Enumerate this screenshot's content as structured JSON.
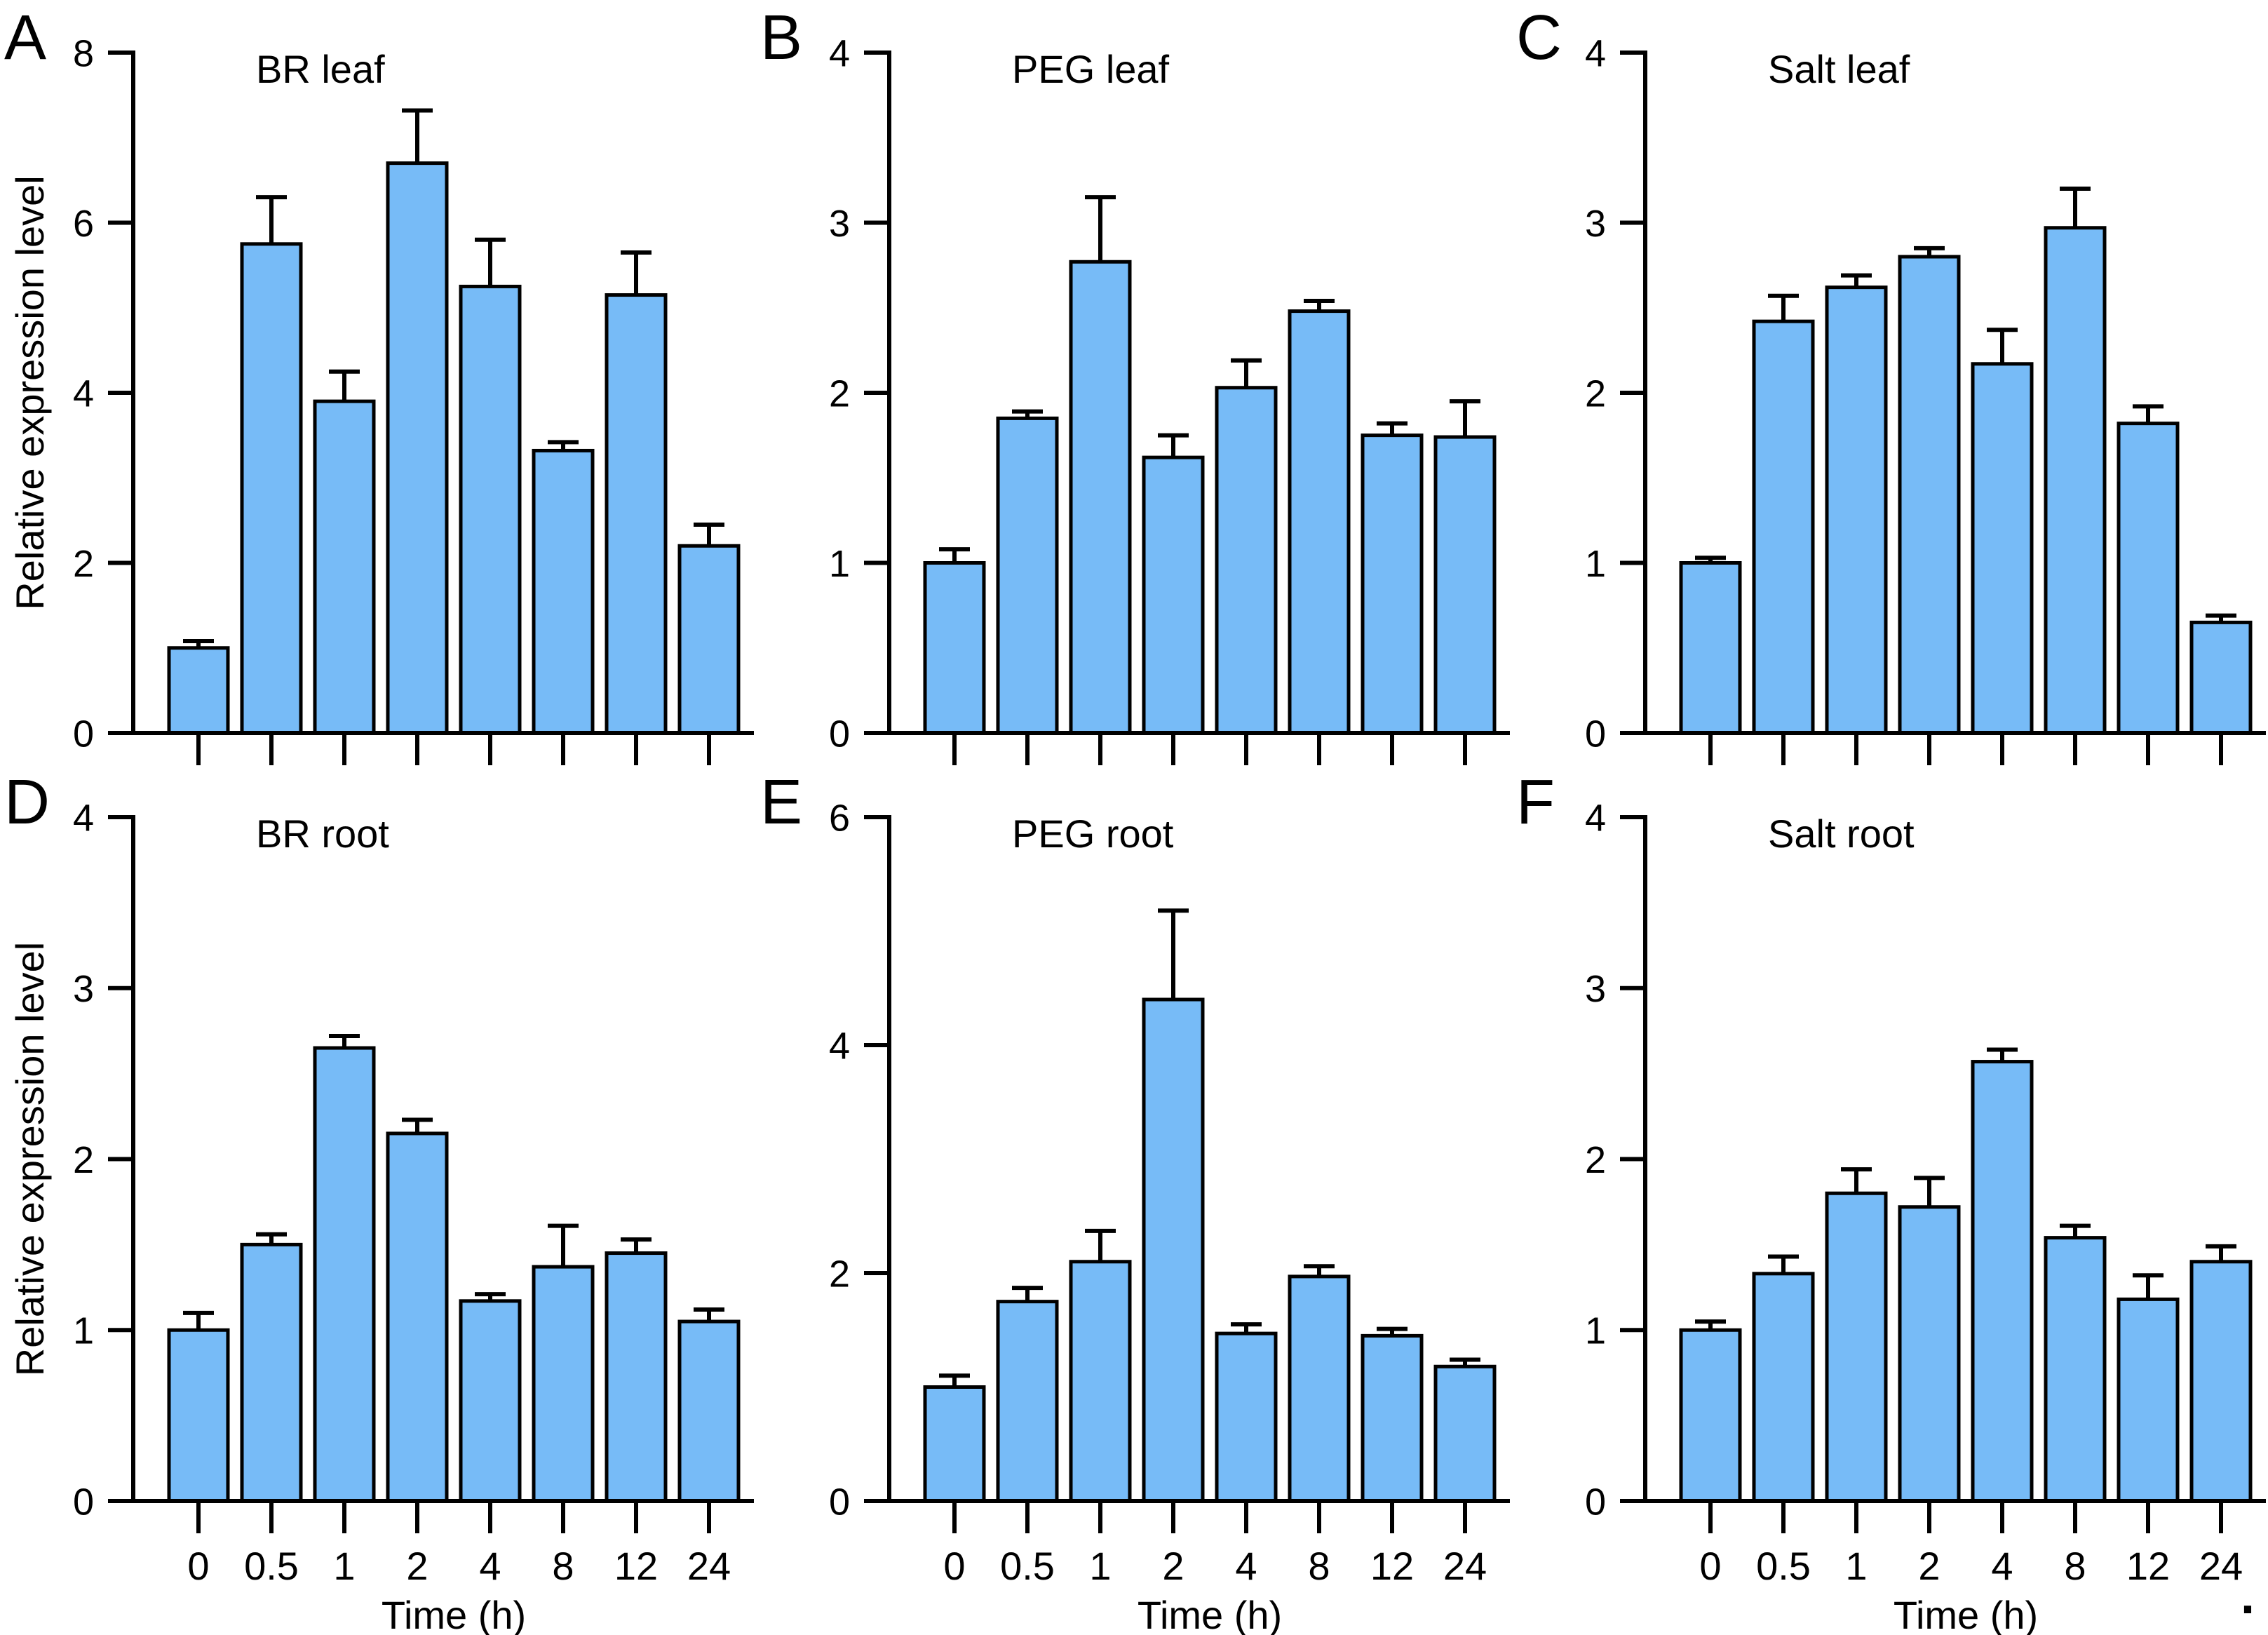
{
  "figure": {
    "footer_period": ".",
    "colors": {
      "bar_fill": "#77BBF7",
      "axis_stroke": "#000000",
      "text": "#000000",
      "background": "#ffffff"
    },
    "x_axis_label": "Time (h)",
    "y_axis_label": "Relative expression level",
    "time_categories": [
      "0",
      "0.5",
      "1",
      "2",
      "4",
      "8",
      "12",
      "24"
    ]
  },
  "chart_data": [
    {
      "type": "bar",
      "panel": "A",
      "title": "BR leaf",
      "ylabel": "Relative expression level",
      "xlabel": "",
      "show_x_tick_labels": false,
      "ylim": [
        0,
        8
      ],
      "yticks": [
        0,
        2,
        4,
        6,
        8
      ],
      "categories": [
        "0",
        "0.5",
        "1",
        "2",
        "4",
        "8",
        "12",
        "24"
      ],
      "values": [
        1.0,
        5.75,
        3.9,
        6.7,
        5.25,
        3.32,
        5.15,
        2.2
      ],
      "errors": [
        0.08,
        0.55,
        0.35,
        0.62,
        0.55,
        0.1,
        0.5,
        0.25
      ],
      "grid": false,
      "legend": false
    },
    {
      "type": "bar",
      "panel": "B",
      "title": "PEG leaf",
      "ylabel": "",
      "xlabel": "",
      "show_x_tick_labels": false,
      "ylim": [
        0,
        4
      ],
      "yticks": [
        0,
        1,
        2,
        3,
        4
      ],
      "categories": [
        "0",
        "0.5",
        "1",
        "2",
        "4",
        "8",
        "12",
        "24"
      ],
      "values": [
        1.0,
        1.85,
        2.77,
        1.62,
        2.03,
        2.48,
        1.75,
        1.74
      ],
      "errors": [
        0.08,
        0.04,
        0.38,
        0.13,
        0.16,
        0.06,
        0.07,
        0.21
      ],
      "grid": false,
      "legend": false
    },
    {
      "type": "bar",
      "panel": "C",
      "title": "Salt leaf",
      "ylabel": "",
      "xlabel": "",
      "show_x_tick_labels": false,
      "ylim": [
        0,
        4
      ],
      "yticks": [
        0,
        1,
        2,
        3,
        4
      ],
      "categories": [
        "0",
        "0.5",
        "1",
        "2",
        "4",
        "8",
        "12",
        "24"
      ],
      "values": [
        1.0,
        2.42,
        2.62,
        2.8,
        2.17,
        2.97,
        1.82,
        0.65
      ],
      "errors": [
        0.03,
        0.15,
        0.07,
        0.05,
        0.2,
        0.23,
        0.1,
        0.04
      ],
      "grid": false,
      "legend": false
    },
    {
      "type": "bar",
      "panel": "D",
      "title": "BR root",
      "ylabel": "Relative expression level",
      "xlabel": "Time (h)",
      "show_x_tick_labels": true,
      "ylim": [
        0,
        4
      ],
      "yticks": [
        0,
        1,
        2,
        3,
        4
      ],
      "categories": [
        "0",
        "0.5",
        "1",
        "2",
        "4",
        "8",
        "12",
        "24"
      ],
      "values": [
        1.0,
        1.5,
        2.65,
        2.15,
        1.17,
        1.37,
        1.45,
        1.05
      ],
      "errors": [
        0.1,
        0.06,
        0.07,
        0.08,
        0.04,
        0.24,
        0.08,
        0.07
      ],
      "grid": false,
      "legend": false
    },
    {
      "type": "bar",
      "panel": "E",
      "title": "PEG root",
      "ylabel": "",
      "xlabel": "Time (h)",
      "show_x_tick_labels": true,
      "ylim": [
        0,
        6
      ],
      "yticks": [
        0,
        2,
        4,
        6
      ],
      "categories": [
        "0",
        "0.5",
        "1",
        "2",
        "4",
        "8",
        "12",
        "24"
      ],
      "values": [
        1.0,
        1.75,
        2.1,
        4.4,
        1.47,
        1.97,
        1.45,
        1.18
      ],
      "errors": [
        0.1,
        0.12,
        0.27,
        0.78,
        0.08,
        0.09,
        0.06,
        0.06
      ],
      "grid": false,
      "legend": false
    },
    {
      "type": "bar",
      "panel": "F",
      "title": "Salt root",
      "ylabel": "",
      "xlabel": "Time (h)",
      "show_x_tick_labels": true,
      "ylim": [
        0,
        4
      ],
      "yticks": [
        0,
        1,
        2,
        3,
        4
      ],
      "categories": [
        "0",
        "0.5",
        "1",
        "2",
        "4",
        "8",
        "12",
        "24"
      ],
      "values": [
        1.0,
        1.33,
        1.8,
        1.72,
        2.57,
        1.54,
        1.18,
        1.4
      ],
      "errors": [
        0.05,
        0.1,
        0.14,
        0.17,
        0.07,
        0.07,
        0.14,
        0.09
      ],
      "grid": false,
      "legend": false
    }
  ]
}
